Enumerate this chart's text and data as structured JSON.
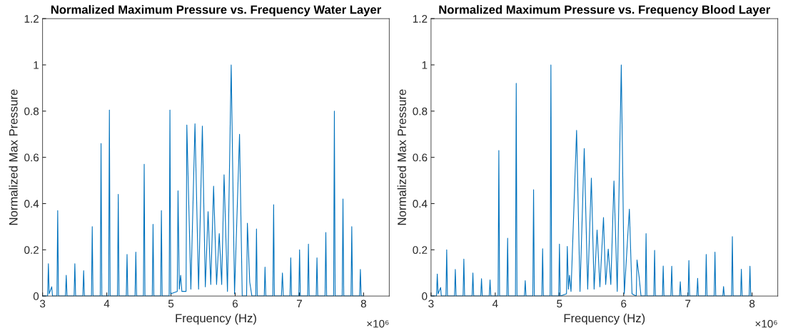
{
  "chart_data": [
    {
      "type": "line",
      "title": "Normalized Maximum Pressure vs. Frequency Water Layer",
      "xlabel": "Frequency (Hz)",
      "ylabel": "Normalized Max Pressure",
      "annotations": [
        "×10⁶"
      ],
      "xlim": [
        3,
        8.4
      ],
      "xticks": [
        3,
        4,
        5,
        6,
        7,
        8
      ],
      "ylim": [
        0,
        1.2
      ],
      "yticks": [
        0,
        0.2,
        0.4,
        0.6,
        0.8,
        1,
        1.2
      ],
      "series": [
        {
          "color": "#0072bd",
          "x": [
            3.0,
            3.079,
            3.091,
            3.103,
            3.143,
            3.155,
            3.224,
            3.236,
            3.248,
            3.357,
            3.369,
            3.381,
            3.491,
            3.503,
            3.515,
            3.628,
            3.64,
            3.652,
            3.762,
            3.774,
            3.786,
            3.899,
            3.911,
            3.923,
            4.029,
            4.041,
            4.053,
            4.167,
            4.179,
            4.191,
            4.304,
            4.316,
            4.328,
            4.441,
            4.453,
            4.465,
            4.571,
            4.583,
            4.595,
            4.709,
            4.721,
            4.733,
            4.839,
            4.851,
            4.863,
            4.972,
            4.984,
            4.996,
            5.098,
            5.11,
            5.13,
            5.151,
            5.17,
            5.235,
            5.247,
            5.31,
            5.374,
            5.43,
            5.489,
            5.535,
            5.578,
            5.62,
            5.664,
            5.71,
            5.752,
            5.79,
            5.827,
            5.88,
            5.938,
            5.99,
            6.068,
            6.11,
            6.178,
            6.19,
            6.227,
            6.26,
            6.32,
            6.332,
            6.344,
            6.453,
            6.465,
            6.477,
            6.587,
            6.599,
            6.611,
            6.72,
            6.736,
            6.75,
            6.854,
            6.866,
            6.878,
            6.991,
            7.003,
            7.015,
            7.129,
            7.141,
            7.153,
            7.262,
            7.274,
            7.286,
            7.4,
            7.412,
            7.424,
            7.533,
            7.545,
            7.557,
            7.667,
            7.679,
            7.691,
            7.804,
            7.816,
            7.828,
            7.938,
            7.95,
            7.962,
            8.0
          ],
          "values": [
            0,
            0,
            0.14,
            0.01,
            0.04,
            0,
            0,
            0.37,
            0,
            0,
            0.09,
            0,
            0,
            0.14,
            0,
            0,
            0.11,
            0,
            0,
            0.3,
            0,
            0,
            0.66,
            0,
            0,
            0.805,
            0,
            0,
            0.44,
            0,
            0,
            0.18,
            0,
            0,
            0.19,
            0,
            0,
            0.57,
            0,
            0,
            0.31,
            0,
            0,
            0.37,
            0,
            0,
            0.805,
            0.01,
            0.02,
            0.455,
            0.03,
            0.09,
            0.02,
            0.02,
            0.74,
            0.03,
            0.745,
            0.03,
            0.735,
            0.04,
            0.365,
            0.05,
            0.475,
            0.05,
            0.27,
            0.05,
            0.525,
            0.02,
            1.0,
            0.01,
            0.7,
            0,
            0,
            0.315,
            0.06,
            0,
            0,
            0.29,
            0,
            0,
            0.125,
            0,
            0,
            0.395,
            0,
            0,
            0.1,
            0,
            0,
            0.165,
            0,
            0,
            0.2,
            0,
            0,
            0.225,
            0,
            0,
            0.165,
            0,
            0,
            0.275,
            0,
            0,
            0.8,
            0,
            0,
            0.42,
            0,
            0,
            0.3,
            0,
            0,
            0.115,
            0,
            0
          ]
        }
      ]
    },
    {
      "type": "line",
      "title": "Normalized Maximum Pressure vs. Frequency Blood Layer",
      "xlabel": "Frequency (Hz)",
      "ylabel": "Normalized Max Pressure",
      "annotations": [
        "×10⁶"
      ],
      "xlim": [
        3,
        8.4
      ],
      "xticks": [
        3,
        4,
        5,
        6,
        7,
        8
      ],
      "ylim": [
        0,
        1.2
      ],
      "yticks": [
        0,
        0.2,
        0.4,
        0.6,
        0.8,
        1,
        1.2
      ],
      "series": [
        {
          "color": "#0072bd",
          "x": [
            3.0,
            3.085,
            3.097,
            3.11,
            3.149,
            3.16,
            3.232,
            3.244,
            3.256,
            3.366,
            3.378,
            3.39,
            3.499,
            3.511,
            3.523,
            3.64,
            3.652,
            3.664,
            3.774,
            3.786,
            3.798,
            3.907,
            3.919,
            3.931,
            4.044,
            4.056,
            4.068,
            4.181,
            4.193,
            4.205,
            4.315,
            4.327,
            4.339,
            4.455,
            4.467,
            4.479,
            4.585,
            4.597,
            4.609,
            4.726,
            4.738,
            4.75,
            4.855,
            4.867,
            4.879,
            4.988,
            5.0,
            5.012,
            5.11,
            5.122,
            5.14,
            5.156,
            5.18,
            5.267,
            5.32,
            5.386,
            5.44,
            5.497,
            5.54,
            5.586,
            5.63,
            5.686,
            5.72,
            5.76,
            5.8,
            5.849,
            5.9,
            5.963,
            6.01,
            6.089,
            6.13,
            6.196,
            6.208,
            6.241,
            6.27,
            6.337,
            6.349,
            6.361,
            6.47,
            6.482,
            6.494,
            6.604,
            6.616,
            6.628,
            6.735,
            6.749,
            6.761,
            6.87,
            6.882,
            6.894,
            7.004,
            7.016,
            7.028,
            7.14,
            7.152,
            7.164,
            7.274,
            7.286,
            7.298,
            7.41,
            7.422,
            7.434,
            7.544,
            7.556,
            7.568,
            7.681,
            7.693,
            7.705,
            7.821,
            7.833,
            7.845,
            7.955,
            7.967,
            7.979,
            8.0
          ],
          "values": [
            0,
            0,
            0.095,
            0.01,
            0.037,
            0,
            0,
            0.2,
            0,
            0,
            0.115,
            0,
            0,
            0.16,
            0,
            0,
            0.1,
            0,
            0,
            0.075,
            0,
            0,
            0.07,
            0,
            0,
            0.63,
            0,
            0,
            0.25,
            0,
            0,
            0.92,
            0,
            0,
            0.067,
            0,
            0,
            0.46,
            0,
            0,
            0.205,
            0,
            0,
            1.0,
            0,
            0,
            0.225,
            0,
            0.01,
            0.215,
            0.03,
            0.09,
            0.02,
            0.717,
            0.02,
            0.638,
            0.03,
            0.51,
            0.03,
            0.286,
            0.04,
            0.34,
            0.05,
            0.203,
            0.05,
            0.498,
            0.02,
            1.0,
            0.01,
            0.376,
            0.01,
            0,
            0.156,
            0.082,
            0,
            0,
            0.27,
            0,
            0,
            0.198,
            0,
            0,
            0.13,
            0,
            0,
            0.129,
            0,
            0,
            0.062,
            0,
            0,
            0.154,
            0,
            0,
            0.077,
            0,
            0,
            0.18,
            0,
            0,
            0.19,
            0,
            0,
            0.041,
            0,
            0,
            0.257,
            0,
            0,
            0.116,
            0,
            0,
            0.129,
            0,
            0
          ]
        }
      ]
    }
  ]
}
